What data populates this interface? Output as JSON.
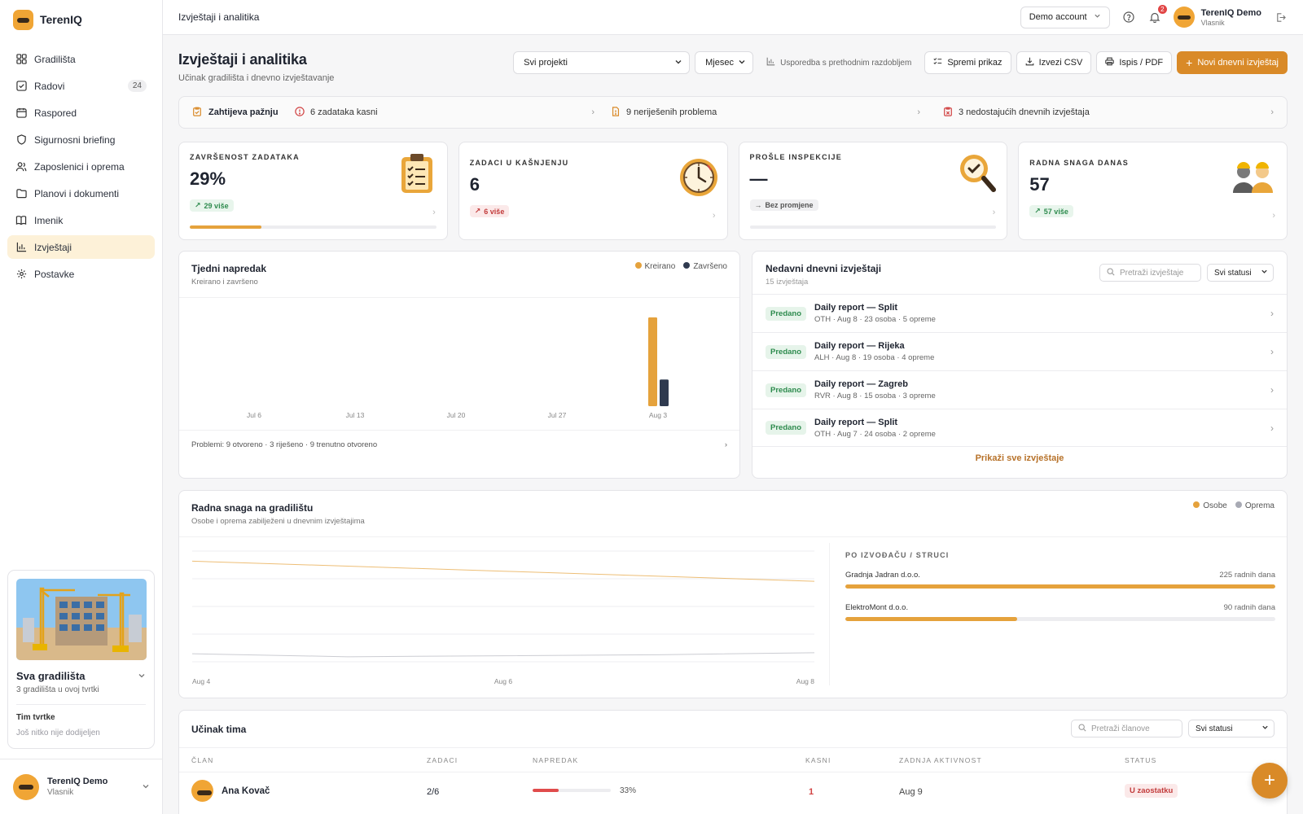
{
  "brand": {
    "name": "TerenIQ"
  },
  "sidebar": {
    "items": [
      {
        "label": "Gradilišta",
        "icon": "grid-icon"
      },
      {
        "label": "Radovi",
        "icon": "checkbox-icon",
        "badge": "24"
      },
      {
        "label": "Raspored",
        "icon": "calendar-icon"
      },
      {
        "label": "Sigurnosni briefing",
        "icon": "shield-icon"
      },
      {
        "label": "Zaposlenici i oprema",
        "icon": "users-icon"
      },
      {
        "label": "Planovi i dokumenti",
        "icon": "folder-icon"
      },
      {
        "label": "Imenik",
        "icon": "book-icon"
      },
      {
        "label": "Izvještaji",
        "icon": "bar-chart-icon",
        "active": true
      },
      {
        "label": "Postavke",
        "icon": "gear-icon"
      }
    ],
    "site_card": {
      "title": "Sva gradilišta",
      "subtitle": "3 gradilišta u ovoj tvrtki",
      "team_label": "Tim tvrtke",
      "team_sub": "Još nitko nije dodijeljen"
    },
    "user": {
      "name": "TerenIQ Demo",
      "role": "Vlasnik"
    }
  },
  "topbar": {
    "title": "Izvještaji i analitika",
    "account_label": "Demo account",
    "notifications_count": "2",
    "user": {
      "name": "TerenIQ Demo",
      "role": "Vlasnik"
    }
  },
  "page": {
    "title": "Izvještaji i analitika",
    "subtitle": "Učinak gradilišta i dnevno izvještavanje",
    "project_select": "Svi projekti",
    "period_select": "Mjesec",
    "compare_label": "Usporedba s prethodnim razdobljem",
    "save_view": "Spremi prikaz",
    "export_csv": "Izvezi CSV",
    "print_pdf": "Ispis / PDF",
    "new_report": "Novi dnevni izvještaj"
  },
  "attention": {
    "lead": "Zahtijeva pažnju",
    "items": [
      "6 zadataka kasni",
      "9 neriješenih problema",
      "3 nedostajućih dnevnih izvještaja"
    ]
  },
  "kpis": [
    {
      "label": "ZAVRŠENOST ZADATAKA",
      "value": "29%",
      "delta": "29 više",
      "progress": 0.29
    },
    {
      "label": "ZADACI U KAŠNJENJU",
      "value": "6",
      "delta": "6 više"
    },
    {
      "label": "PROŠLE INSPEKCIJE",
      "value": "—",
      "delta": "Bez promjene"
    },
    {
      "label": "RADNA SNAGA DANAS",
      "value": "57",
      "delta": "57 više"
    }
  ],
  "weekly": {
    "title": "Tjedni napredak",
    "subtitle": "Kreirano i završeno",
    "footer": "Problemi: 9 otvoreno · 3 riješeno · 9 trenutno otvoreno"
  },
  "reports": {
    "title": "Nedavni dnevni izvještaji",
    "count": "15 izvještaja",
    "search_placeholder": "Pretraži izvještaje",
    "status_select": "Svi statusi",
    "show_all": "Prikaži sve izvještaje",
    "rows": [
      {
        "status": "Predano",
        "title": "Daily report — Split",
        "meta": "OTH · Aug 8 · 23 osoba · 5 opreme"
      },
      {
        "status": "Predano",
        "title": "Daily report — Rijeka",
        "meta": "ALH · Aug 8 · 19 osoba · 4 opreme"
      },
      {
        "status": "Predano",
        "title": "Daily report — Zagreb",
        "meta": "RVR · Aug 8 · 15 osoba · 3 opreme"
      },
      {
        "status": "Predano",
        "title": "Daily report — Split",
        "meta": "OTH · Aug 7 · 24 osoba · 2 opreme"
      }
    ]
  },
  "workforce": {
    "title": "Radna snaga na gradilištu",
    "subtitle": "Osobe i oprema zabilježeni u dnevnim izvještajima",
    "contrib_title": "PO IZVOĐAČU / STRUCI",
    "contributors": [
      {
        "name": "Gradnja Jadran d.o.o.",
        "value": "225 radnih dana",
        "fraction": 1.0
      },
      {
        "name": "ElektroMont d.o.o.",
        "value": "90 radnih dana",
        "fraction": 0.4
      }
    ]
  },
  "team": {
    "title": "Učinak tima",
    "search_placeholder": "Pretraži članove",
    "status_select": "Svi statusi",
    "columns": [
      "ČLAN",
      "ZADACI",
      "NAPREDAK",
      "KASNI",
      "ZADNJA AKTIVNOST",
      "STATUS"
    ],
    "rows": [
      {
        "name": "Ana Kovač",
        "tasks": "2/6",
        "progress_label": "33%",
        "progress": 0.33,
        "late": "1",
        "last_activity": "Aug 9",
        "status": "U zaostatku"
      }
    ]
  },
  "colors": {
    "accent": "#d98a28",
    "orange": "#e5a23c",
    "navy": "#2f3a4f",
    "gray": "#a8aab4"
  },
  "chart_data": [
    {
      "type": "bar",
      "categories": [
        "Jul 6",
        "Jul 13",
        "Jul 20",
        "Jul 27",
        "Aug 3"
      ],
      "series": [
        {
          "name": "Kreirano",
          "values": [
            0,
            0,
            0,
            0,
            20
          ]
        },
        {
          "name": "Završeno",
          "values": [
            0,
            0,
            0,
            0,
            6
          ]
        }
      ],
      "ylim": [
        0,
        22
      ],
      "legend": "top-right"
    },
    {
      "type": "line",
      "x": [
        "Aug 4",
        "Aug 5",
        "Aug 6",
        "Aug 7",
        "Aug 8"
      ],
      "x_ticks": [
        "Aug 4",
        "Aug 6",
        "Aug 8"
      ],
      "series": [
        {
          "name": "Osobe",
          "values": [
            100,
            95,
            90,
            85,
            80
          ]
        },
        {
          "name": "Oprema",
          "values": [
            8,
            5,
            6,
            7,
            9
          ]
        }
      ],
      "ylim": [
        0,
        110
      ],
      "grid": true,
      "legend": "top-right"
    }
  ]
}
